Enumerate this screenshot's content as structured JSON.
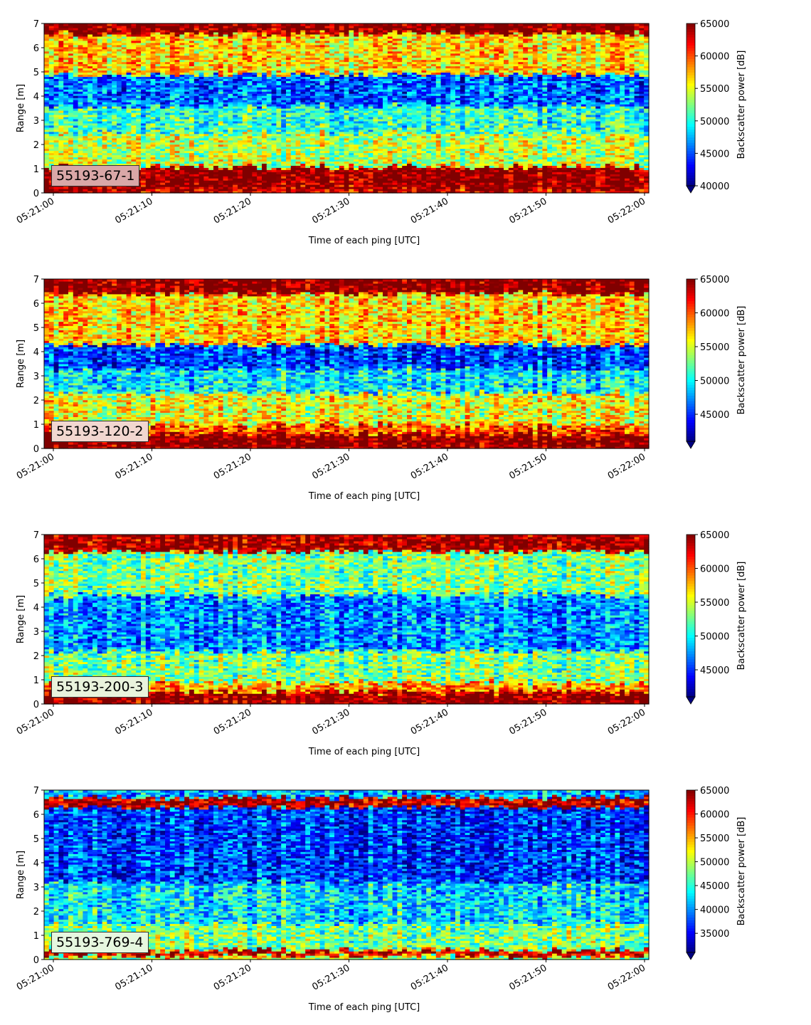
{
  "chart_data": [
    {
      "type": "heatmap",
      "panel_label": "55193-67-1",
      "label_box_color": "#d9a7a7",
      "xlabel": "Time of each ping [UTC]",
      "ylabel": "Range [m]",
      "x_ticks": [
        "05:21:00",
        "05:21:10",
        "05:21:20",
        "05:21:30",
        "05:21:40",
        "05:21:50",
        "05:22:00"
      ],
      "x_range": [
        "05:21:00",
        "05:22:00"
      ],
      "y_ticks": [
        0,
        1,
        2,
        3,
        4,
        5,
        6,
        7
      ],
      "ylim": [
        0,
        7
      ],
      "colorbar": {
        "label": "Backscatter power [dB]",
        "min": 40000,
        "max": 65000,
        "ticks": [
          40000,
          45000,
          50000,
          55000,
          60000,
          65000
        ],
        "colormap": "jet",
        "extend": "min"
      },
      "features": [
        {
          "range_m": [
            0.2,
            1.1
          ],
          "level": "high (~65000)"
        },
        {
          "range_m": [
            6.7,
            7.0
          ],
          "level": "high (~65000)"
        },
        {
          "range_m": [
            3.8,
            4.9
          ],
          "level": "low (~42000)"
        }
      ]
    },
    {
      "type": "heatmap",
      "panel_label": "55193-120-2",
      "label_box_color": "#f2d7d0",
      "xlabel": "Time of each ping [UTC]",
      "ylabel": "Range [m]",
      "x_ticks": [
        "05:21:00",
        "05:21:10",
        "05:21:20",
        "05:21:30",
        "05:21:40",
        "05:21:50",
        "05:22:00"
      ],
      "x_range": [
        "05:21:00",
        "05:22:00"
      ],
      "y_ticks": [
        0,
        1,
        2,
        3,
        4,
        5,
        6,
        7
      ],
      "ylim": [
        0,
        7
      ],
      "colorbar": {
        "label": "Backscatter power [dB]",
        "min": 41000,
        "max": 65000,
        "ticks": [
          45000,
          50000,
          55000,
          60000,
          65000
        ],
        "colormap": "jet",
        "extend": "min"
      },
      "features": [
        {
          "range_m": [
            0.1,
            0.6
          ],
          "level": "high (~65000)"
        },
        {
          "range_m": [
            6.4,
            7.0
          ],
          "level": "high (~65000)"
        },
        {
          "range_m": [
            3.4,
            4.3
          ],
          "level": "low (~43000)"
        }
      ]
    },
    {
      "type": "heatmap",
      "panel_label": "55193-200-3",
      "label_box_color": "#e9f3dc",
      "xlabel": "Time of each ping [UTC]",
      "ylabel": "Range [m]",
      "x_ticks": [
        "05:21:00",
        "05:21:10",
        "05:21:20",
        "05:21:30",
        "05:21:40",
        "05:21:50",
        "05:22:00"
      ],
      "x_range": [
        "05:21:00",
        "05:22:00"
      ],
      "y_ticks": [
        0,
        1,
        2,
        3,
        4,
        5,
        6,
        7
      ],
      "ylim": [
        0,
        7
      ],
      "colorbar": {
        "label": "Backscatter power [dB]",
        "min": 41000,
        "max": 65000,
        "ticks": [
          45000,
          50000,
          55000,
          60000,
          65000
        ],
        "colormap": "jet",
        "extend": "min"
      },
      "features": [
        {
          "range_m": [
            0.1,
            0.5
          ],
          "level": "high (~65000)"
        },
        {
          "range_m": [
            6.5,
            7.0
          ],
          "level": "high (~65000)"
        },
        {
          "range_m": [
            3.2,
            4.5
          ],
          "level": "low (~44000)"
        }
      ]
    },
    {
      "type": "heatmap",
      "panel_label": "55193-769-4",
      "label_box_color": "#e6f7df",
      "xlabel": "Time of each ping [UTC]",
      "ylabel": "Range [m]",
      "x_ticks": [
        "05:21:00",
        "05:21:10",
        "05:21:20",
        "05:21:30",
        "05:21:40",
        "05:21:50",
        "05:22:00"
      ],
      "x_range": [
        "05:21:00",
        "05:22:00"
      ],
      "y_ticks": [
        0,
        1,
        2,
        3,
        4,
        5,
        6,
        7
      ],
      "ylim": [
        0,
        7
      ],
      "colorbar": {
        "label": "Backscatter power [dB]",
        "min": 31000,
        "max": 65000,
        "ticks": [
          35000,
          40000,
          45000,
          50000,
          55000,
          60000,
          65000
        ],
        "colormap": "jet",
        "extend": "min"
      },
      "features": [
        {
          "range_m": [
            0.15,
            0.4
          ],
          "level": "high (~62000)"
        },
        {
          "range_m": [
            6.4,
            6.7
          ],
          "level": "high (~63000)"
        },
        {
          "range_m": [
            3.5,
            6.2
          ],
          "level": "low (~36000)"
        }
      ]
    }
  ]
}
